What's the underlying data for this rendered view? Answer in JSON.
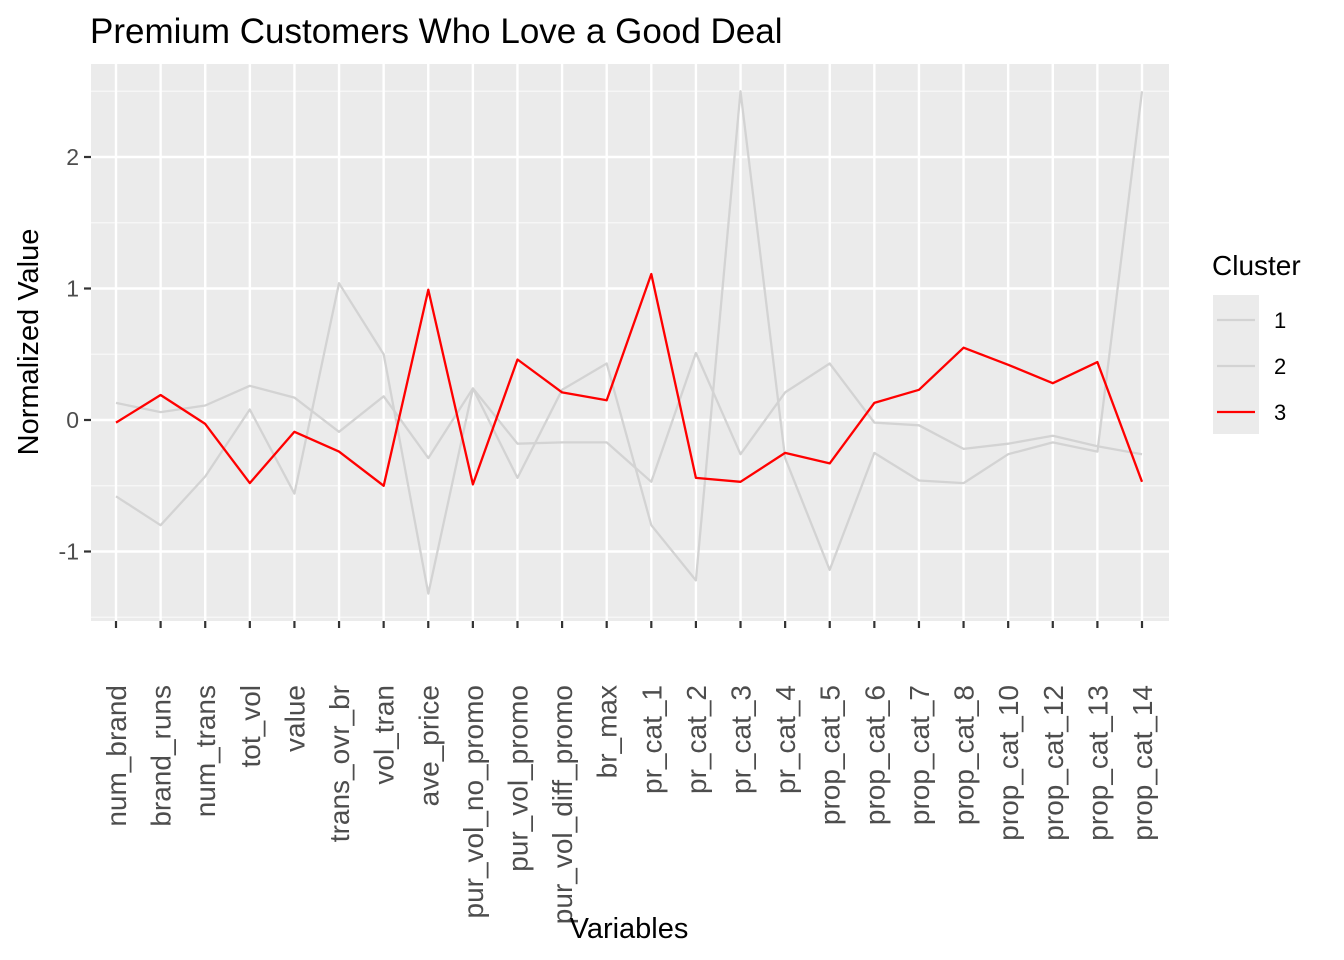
{
  "chart_data": {
    "type": "line",
    "title": "Premium Customers Who Love a Good Deal",
    "xlabel": "Variables",
    "ylabel": "Normalized Value",
    "categories": [
      "num_brand",
      "brand_runs",
      "num_trans",
      "tot_vol",
      "value",
      "trans_ovr_br",
      "vol_tran",
      "ave_price",
      "pur_vol_no_promo",
      "pur_vol_promo",
      "pur_vol_diff_promo",
      "br_max",
      "pr_cat_1",
      "pr_cat_2",
      "pr_cat_3",
      "pr_cat_4",
      "prop_cat_5",
      "prop_cat_6",
      "prop_cat_7",
      "prop_cat_8",
      "prop_cat_10",
      "prop_cat_12",
      "prop_cat_13",
      "prop_cat_14"
    ],
    "yticks": [
      -1,
      0,
      1,
      2
    ],
    "ylim": [
      -1.52,
      2.68
    ],
    "grid": true,
    "legend_title": "Cluster",
    "legend_position": "right",
    "series": [
      {
        "name": "1",
        "color": "#d3d3d3",
        "values": [
          -0.58,
          -0.8,
          -0.43,
          0.08,
          -0.56,
          1.04,
          0.5,
          -1.32,
          0.24,
          -0.44,
          0.23,
          0.43,
          -0.8,
          -1.22,
          2.5,
          -0.29,
          -1.14,
          -0.25,
          -0.46,
          -0.48,
          -0.26,
          -0.17,
          -0.24,
          2.5
        ]
      },
      {
        "name": "2",
        "color": "#d3d3d3",
        "values": [
          0.13,
          0.06,
          0.11,
          0.26,
          0.17,
          -0.09,
          0.18,
          -0.29,
          0.24,
          -0.18,
          -0.17,
          -0.17,
          -0.47,
          0.51,
          -0.26,
          0.21,
          0.43,
          -0.02,
          -0.04,
          -0.22,
          -0.18,
          -0.12,
          -0.2,
          -0.26
        ]
      },
      {
        "name": "3",
        "color": "#ff0000",
        "values": [
          -0.02,
          0.19,
          -0.03,
          -0.48,
          -0.09,
          -0.24,
          -0.5,
          0.99,
          -0.49,
          0.46,
          0.21,
          0.15,
          1.11,
          -0.44,
          -0.47,
          -0.25,
          -0.33,
          0.13,
          0.23,
          0.55,
          0.42,
          0.28,
          0.44,
          -0.47
        ]
      }
    ]
  }
}
